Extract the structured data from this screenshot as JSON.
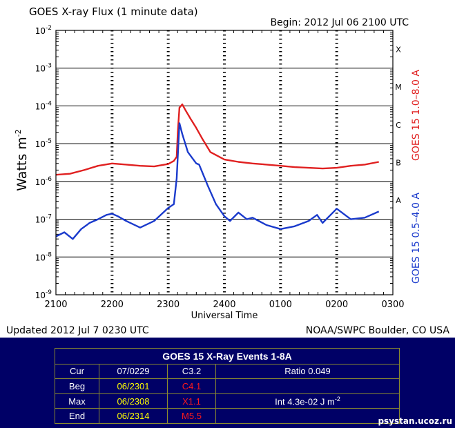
{
  "chart_data": {
    "type": "line",
    "title": "GOES X-ray Flux (1 minute data)",
    "begin_label": "Begin: 2012 Jul 06 2100 UTC",
    "xlabel": "Universal Time",
    "ylabel": "Watts m",
    "ylabel_sup": "-2",
    "yscale": "log",
    "ylim": [
      1e-09,
      0.01
    ],
    "x_tick_labels": [
      "2100",
      "2200",
      "2300",
      "2400",
      "0100",
      "0200",
      "0300"
    ],
    "y_tick_labels": [
      {
        "base": "10",
        "exp": "-2"
      },
      {
        "base": "10",
        "exp": "-3"
      },
      {
        "base": "10",
        "exp": "-4"
      },
      {
        "base": "10",
        "exp": "-5"
      },
      {
        "base": "10",
        "exp": "-6"
      },
      {
        "base": "10",
        "exp": "-7"
      },
      {
        "base": "10",
        "exp": "-8"
      },
      {
        "base": "10",
        "exp": "-9"
      }
    ],
    "flare_class_labels": [
      "X",
      "M",
      "C",
      "B",
      "A"
    ],
    "x_unit": "hours after 2012 Jul 06 2100 UTC",
    "series": [
      {
        "name": "GOES 15 1.0–8.0 A",
        "color": "#e02020",
        "x": [
          0.0,
          0.25,
          0.5,
          0.75,
          1.0,
          1.25,
          1.5,
          1.75,
          2.0,
          2.1,
          2.15,
          2.17,
          2.2,
          2.25,
          2.3,
          2.4,
          2.5,
          2.6,
          2.75,
          3.0,
          3.25,
          3.5,
          3.75,
          4.0,
          4.25,
          4.5,
          4.75,
          5.0,
          5.25,
          5.5,
          5.75
        ],
        "values": [
          1.5e-06,
          1.6e-06,
          2e-06,
          2.6e-06,
          3e-06,
          2.8e-06,
          2.6e-06,
          2.5e-06,
          2.9e-06,
          3.5e-06,
          4.5e-06,
          2e-05,
          9e-05,
          0.00011,
          8e-05,
          4.5e-05,
          2.6e-05,
          1.4e-05,
          6e-06,
          3.8e-06,
          3.3e-06,
          3e-06,
          2.8e-06,
          2.6e-06,
          2.4e-06,
          2.3e-06,
          2.2e-06,
          2.3e-06,
          2.6e-06,
          2.8e-06,
          3.3e-06
        ]
      },
      {
        "name": "GOES 15 0.5–4.0 A",
        "color": "#1a3acc",
        "x": [
          0.0,
          0.15,
          0.3,
          0.45,
          0.6,
          0.75,
          0.9,
          1.0,
          1.1,
          1.25,
          1.5,
          1.75,
          2.0,
          2.1,
          2.15,
          2.2,
          2.25,
          2.35,
          2.5,
          2.55,
          2.7,
          2.85,
          3.0,
          3.1,
          3.25,
          3.4,
          3.5,
          3.75,
          4.0,
          4.25,
          4.5,
          4.65,
          4.75,
          5.0,
          5.25,
          5.5,
          5.75
        ],
        "values": [
          3.5e-08,
          4.5e-08,
          3e-08,
          5.5e-08,
          8e-08,
          1e-07,
          1.3e-07,
          1.4e-07,
          1.2e-07,
          9e-08,
          6e-08,
          9e-08,
          2e-07,
          2.5e-07,
          1.2e-06,
          3.5e-05,
          1.8e-05,
          6e-06,
          3e-06,
          2.8e-06,
          8e-07,
          2.5e-07,
          1.2e-07,
          9e-08,
          1.5e-07,
          1e-07,
          1.1e-07,
          7e-08,
          5.5e-08,
          6.5e-08,
          9e-08,
          1.3e-07,
          8e-08,
          1.9e-07,
          1e-07,
          1.1e-07,
          1.6e-07
        ]
      }
    ],
    "right_axis_labels": [
      {
        "text": "GOES 15 1.0–8.0 A",
        "color": "#e02020"
      },
      {
        "text": "GOES 15 0.5–4.0 A",
        "color": "#1a3acc"
      }
    ],
    "footer_left": "Updated 2012 Jul  7 0230 UTC",
    "footer_right": "NOAA/SWPC Boulder, CO USA",
    "grid": "dashed vertical, solid horizontal",
    "colors": {
      "background": "#ffffff",
      "frame": "#000000"
    }
  },
  "events_table": {
    "title": "GOES 15 X-Ray Events 1-8A",
    "rows": [
      {
        "label": "Cur",
        "time": "07/0229",
        "class": "C3.2",
        "extra": "Ratio 0.049"
      },
      {
        "label": "Beg",
        "time": "06/2301",
        "class": "C4.1",
        "extra": ""
      },
      {
        "label": "Max",
        "time": "06/2308",
        "class": "X1.1",
        "extra": "Int 4.3e-02 J m",
        "extra_sup": "-2"
      },
      {
        "label": "End",
        "time": "06/2314",
        "class": "M5.5",
        "extra": ""
      }
    ]
  },
  "site_credit": "psystan.ucoz.ru",
  "colors": {
    "page_bg": "#000066",
    "table_border": "#8a8a2e",
    "yellow": "#ffff00",
    "red": "#ff1a1a"
  }
}
